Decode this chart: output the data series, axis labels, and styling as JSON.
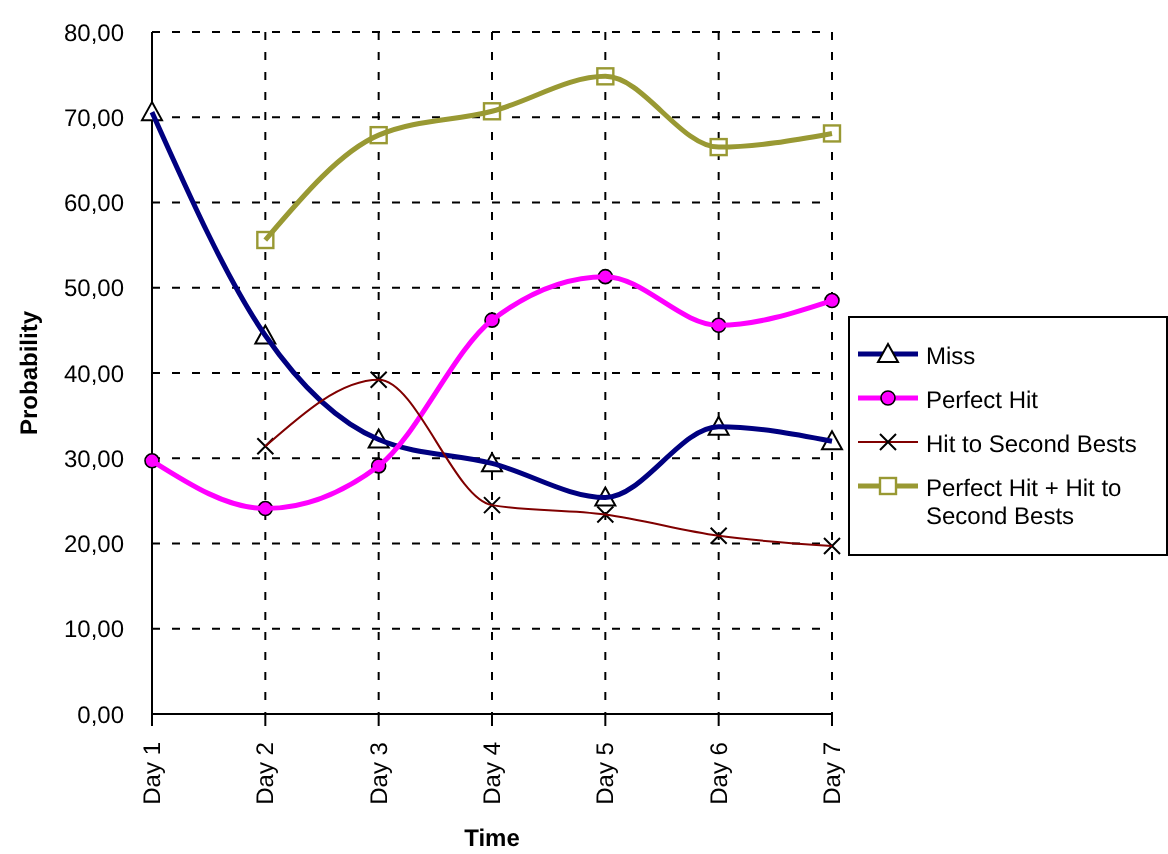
{
  "chart_data": {
    "type": "line",
    "xlabel": "Time",
    "ylabel": "Probability",
    "categories": [
      "Day 1",
      "Day 2",
      "Day 3",
      "Day 4",
      "Day 5",
      "Day 6",
      "Day 7"
    ],
    "series": [
      {
        "name": "Miss",
        "color": "#000080",
        "marker": "triangle",
        "values": [
          70.6,
          44.4,
          32.2,
          29.4,
          25.4,
          33.7,
          32.0
        ]
      },
      {
        "name": "Perfect Hit",
        "color": "#ff00ff",
        "marker": "circle",
        "values": [
          29.7,
          24.1,
          29.1,
          46.2,
          51.3,
          45.6,
          48.5
        ]
      },
      {
        "name": "Hit to Second Bests",
        "color": "#800000",
        "marker": "cross",
        "values": [
          null,
          31.4,
          39.2,
          24.5,
          23.4,
          20.9,
          19.7
        ]
      },
      {
        "name": "Perfect Hit + Hit to Second Bests",
        "color": "#999933",
        "marker": "square",
        "values": [
          null,
          55.6,
          67.9,
          70.7,
          74.8,
          66.5,
          68.1
        ]
      }
    ],
    "ylim": [
      0,
      80
    ],
    "yticks": [
      {
        "value": 0,
        "label": "0,00"
      },
      {
        "value": 10,
        "label": "10,00"
      },
      {
        "value": 20,
        "label": "20,00"
      },
      {
        "value": 30,
        "label": "30,00"
      },
      {
        "value": 40,
        "label": "40,00"
      },
      {
        "value": 50,
        "label": "50,00"
      },
      {
        "value": 60,
        "label": "60,00"
      },
      {
        "value": 70,
        "label": "70,00"
      },
      {
        "value": 80,
        "label": "80,00"
      }
    ],
    "grid": true,
    "legend": "right",
    "line_style": "solid"
  }
}
